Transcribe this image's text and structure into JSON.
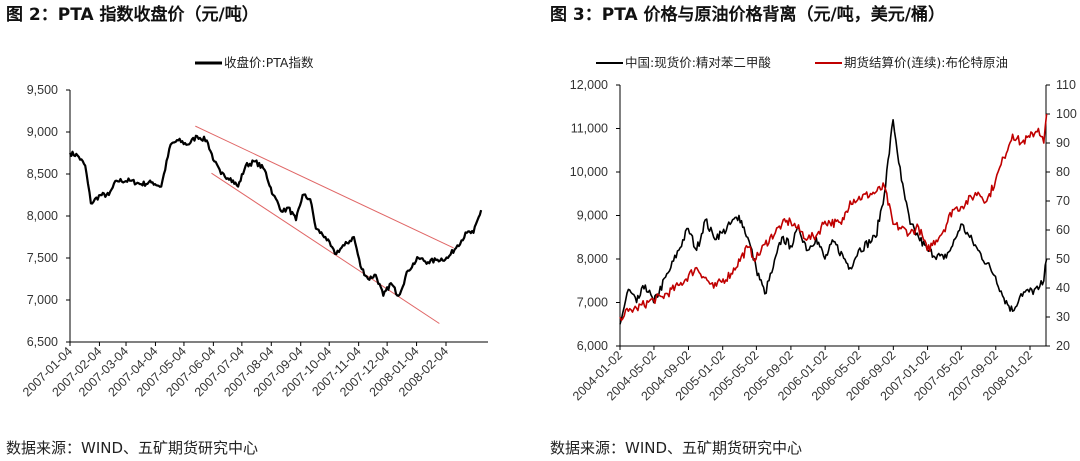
{
  "chart_data": [
    {
      "type": "line",
      "title": "图 2：PTA 指数收盘价（元/吨）",
      "source": "数据来源：WIND、五矿期货研究中心",
      "legend_position": "top",
      "grid": false,
      "ylim": [
        6500,
        9500
      ],
      "yticks": [
        "9,500",
        "9,000",
        "8,500",
        "8,000",
        "7,500",
        "7,000",
        "6,500"
      ],
      "xticks": [
        "2007-01-04",
        "2007-02-04",
        "2007-03-04",
        "2007-04-04",
        "2007-05-04",
        "2007-06-04",
        "2007-07-04",
        "2007-08-04",
        "2007-09-04",
        "2007-10-04",
        "2007-11-04",
        "2007-12-04",
        "2008-01-04",
        "2008-02-04"
      ],
      "series": [
        {
          "name": "收盘价:PTA指数",
          "color": "#000000",
          "points": [
            [
              "2007-01-04",
              8750
            ],
            [
              "2007-01-12",
              8720
            ],
            [
              "2007-01-20",
              8600
            ],
            [
              "2007-01-26",
              8150
            ],
            [
              "2007-02-05",
              8250
            ],
            [
              "2007-02-14",
              8250
            ],
            [
              "2007-02-22",
              8420
            ],
            [
              "2007-03-08",
              8420
            ],
            [
              "2007-03-20",
              8380
            ],
            [
              "2007-04-01",
              8400
            ],
            [
              "2007-04-10",
              8350
            ],
            [
              "2007-04-20",
              8850
            ],
            [
              "2007-04-28",
              8900
            ],
            [
              "2007-05-08",
              8850
            ],
            [
              "2007-05-18",
              8950
            ],
            [
              "2007-05-28",
              8900
            ],
            [
              "2007-06-05",
              8650
            ],
            [
              "2007-06-12",
              8500
            ],
            [
              "2007-06-22",
              8450
            ],
            [
              "2007-06-30",
              8350
            ],
            [
              "2007-07-08",
              8600
            ],
            [
              "2007-07-18",
              8650
            ],
            [
              "2007-07-28",
              8550
            ],
            [
              "2007-08-06",
              8250
            ],
            [
              "2007-08-16",
              8050
            ],
            [
              "2007-08-22",
              8100
            ],
            [
              "2007-08-30",
              7950
            ],
            [
              "2007-09-06",
              8250
            ],
            [
              "2007-09-14",
              8200
            ],
            [
              "2007-09-20",
              7850
            ],
            [
              "2007-09-30",
              7750
            ],
            [
              "2007-10-10",
              7550
            ],
            [
              "2007-10-20",
              7650
            ],
            [
              "2007-10-30",
              7750
            ],
            [
              "2007-11-06",
              7400
            ],
            [
              "2007-11-14",
              7250
            ],
            [
              "2007-11-22",
              7300
            ],
            [
              "2007-11-30",
              7050
            ],
            [
              "2007-12-08",
              7200
            ],
            [
              "2007-12-16",
              7050
            ],
            [
              "2007-12-26",
              7350
            ],
            [
              "2008-01-06",
              7500
            ],
            [
              "2008-01-16",
              7450
            ],
            [
              "2008-01-26",
              7480
            ],
            [
              "2008-02-06",
              7500
            ],
            [
              "2008-02-16",
              7650
            ],
            [
              "2008-02-26",
              7800
            ],
            [
              "2008-03-04",
              7800
            ],
            [
              "2008-03-12",
              8070
            ]
          ]
        }
      ],
      "annotations": [
        {
          "type": "trendline",
          "color": "#e06666",
          "points": [
            [
              "2007-05-16",
              9070
            ],
            [
              "2008-02-12",
              7620
            ]
          ]
        },
        {
          "type": "trendline",
          "color": "#e06666",
          "points": [
            [
              "2007-06-02",
              8510
            ],
            [
              "2008-01-28",
              6720
            ]
          ]
        }
      ]
    },
    {
      "type": "line",
      "title": "图 3：PTA 价格与原油价格背离（元/吨，美元/桶）",
      "source": "数据来源：WIND、五矿期货研究中心",
      "legend_position": "top",
      "grid": false,
      "ylim": [
        6000,
        12000
      ],
      "y2lim": [
        20,
        110
      ],
      "yticks": [
        "12,000",
        "11,000",
        "10,000",
        "9,000",
        "8,000",
        "7,000",
        "6,000"
      ],
      "y2ticks": [
        "110",
        "100",
        "90",
        "80",
        "70",
        "60",
        "50",
        "40",
        "30",
        "20"
      ],
      "xticks": [
        "2004-01-02",
        "2004-05-02",
        "2004-09-02",
        "2005-01-02",
        "2005-05-02",
        "2005-09-02",
        "2006-01-02",
        "2006-05-02",
        "2006-09-02",
        "2007-01-02",
        "2007-05-02",
        "2007-09-02",
        "2008-01-02"
      ],
      "series": [
        {
          "name": "中国:现货价:精对苯二甲酸",
          "color": "#000000",
          "axis": "left",
          "points": [
            [
              "2004-01-02",
              6500
            ],
            [
              "2004-02-01",
              7300
            ],
            [
              "2004-03-01",
              7000
            ],
            [
              "2004-04-01",
              7400
            ],
            [
              "2004-05-01",
              7000
            ],
            [
              "2004-07-01",
              7800
            ],
            [
              "2004-09-01",
              8700
            ],
            [
              "2004-10-01",
              8200
            ],
            [
              "2004-11-01",
              8900
            ],
            [
              "2004-12-01",
              8500
            ],
            [
              "2005-01-01",
              8600
            ],
            [
              "2005-03-01",
              9000
            ],
            [
              "2005-04-01",
              8500
            ],
            [
              "2005-05-01",
              7800
            ],
            [
              "2005-06-01",
              7200
            ],
            [
              "2005-07-01",
              7800
            ],
            [
              "2005-08-01",
              8500
            ],
            [
              "2005-09-01",
              8300
            ],
            [
              "2005-10-01",
              8700
            ],
            [
              "2005-11-01",
              8200
            ],
            [
              "2005-12-01",
              8500
            ],
            [
              "2006-01-01",
              8000
            ],
            [
              "2006-02-01",
              8400
            ],
            [
              "2006-04-01",
              7800
            ],
            [
              "2006-05-01",
              8200
            ],
            [
              "2006-07-01",
              8500
            ],
            [
              "2006-08-01",
              9500
            ],
            [
              "2006-09-01",
              11200
            ],
            [
              "2006-10-01",
              9800
            ],
            [
              "2006-11-01",
              8800
            ],
            [
              "2006-12-01",
              8500
            ],
            [
              "2007-01-01",
              8200
            ],
            [
              "2007-03-01",
              8000
            ],
            [
              "2007-04-01",
              8300
            ],
            [
              "2007-05-01",
              8800
            ],
            [
              "2007-06-01",
              8500
            ],
            [
              "2007-07-01",
              8200
            ],
            [
              "2007-09-01",
              7600
            ],
            [
              "2007-10-01",
              7100
            ],
            [
              "2007-11-01",
              6800
            ],
            [
              "2007-12-01",
              7200
            ],
            [
              "2008-02-01",
              7300
            ],
            [
              "2008-02-20",
              7500
            ],
            [
              "2008-03-01",
              8000
            ]
          ]
        },
        {
          "name": "期货结算价(连续):布伦特原油",
          "color": "#c00000",
          "axis": "right",
          "points": [
            [
              "2004-01-02",
              30
            ],
            [
              "2004-02-01",
              32
            ],
            [
              "2004-03-01",
              33
            ],
            [
              "2004-05-01",
              36
            ],
            [
              "2004-06-01",
              37
            ],
            [
              "2004-08-01",
              41
            ],
            [
              "2004-10-01",
              47
            ],
            [
              "2004-12-01",
              40
            ],
            [
              "2005-02-01",
              45
            ],
            [
              "2005-04-01",
              54
            ],
            [
              "2005-05-01",
              50
            ],
            [
              "2005-06-01",
              55
            ],
            [
              "2005-08-01",
              62
            ],
            [
              "2005-09-01",
              63
            ],
            [
              "2005-11-01",
              57
            ],
            [
              "2005-12-01",
              58
            ],
            [
              "2006-01-01",
              63
            ],
            [
              "2006-03-01",
              62
            ],
            [
              "2006-04-01",
              70
            ],
            [
              "2006-07-01",
              73
            ],
            [
              "2006-08-01",
              75
            ],
            [
              "2006-09-01",
              62
            ],
            [
              "2006-11-01",
              59
            ],
            [
              "2006-12-01",
              61
            ],
            [
              "2007-01-01",
              53
            ],
            [
              "2007-03-01",
              60
            ],
            [
              "2007-04-01",
              67
            ],
            [
              "2007-05-01",
              68
            ],
            [
              "2007-07-01",
              73
            ],
            [
              "2007-08-01",
              70
            ],
            [
              "2007-09-01",
              77
            ],
            [
              "2007-10-01",
              85
            ],
            [
              "2007-11-01",
              93
            ],
            [
              "2007-12-01",
              90
            ],
            [
              "2008-01-01",
              92
            ],
            [
              "2008-02-01",
              95
            ],
            [
              "2008-02-20",
              90
            ],
            [
              "2008-03-01",
              100
            ]
          ]
        }
      ]
    }
  ]
}
